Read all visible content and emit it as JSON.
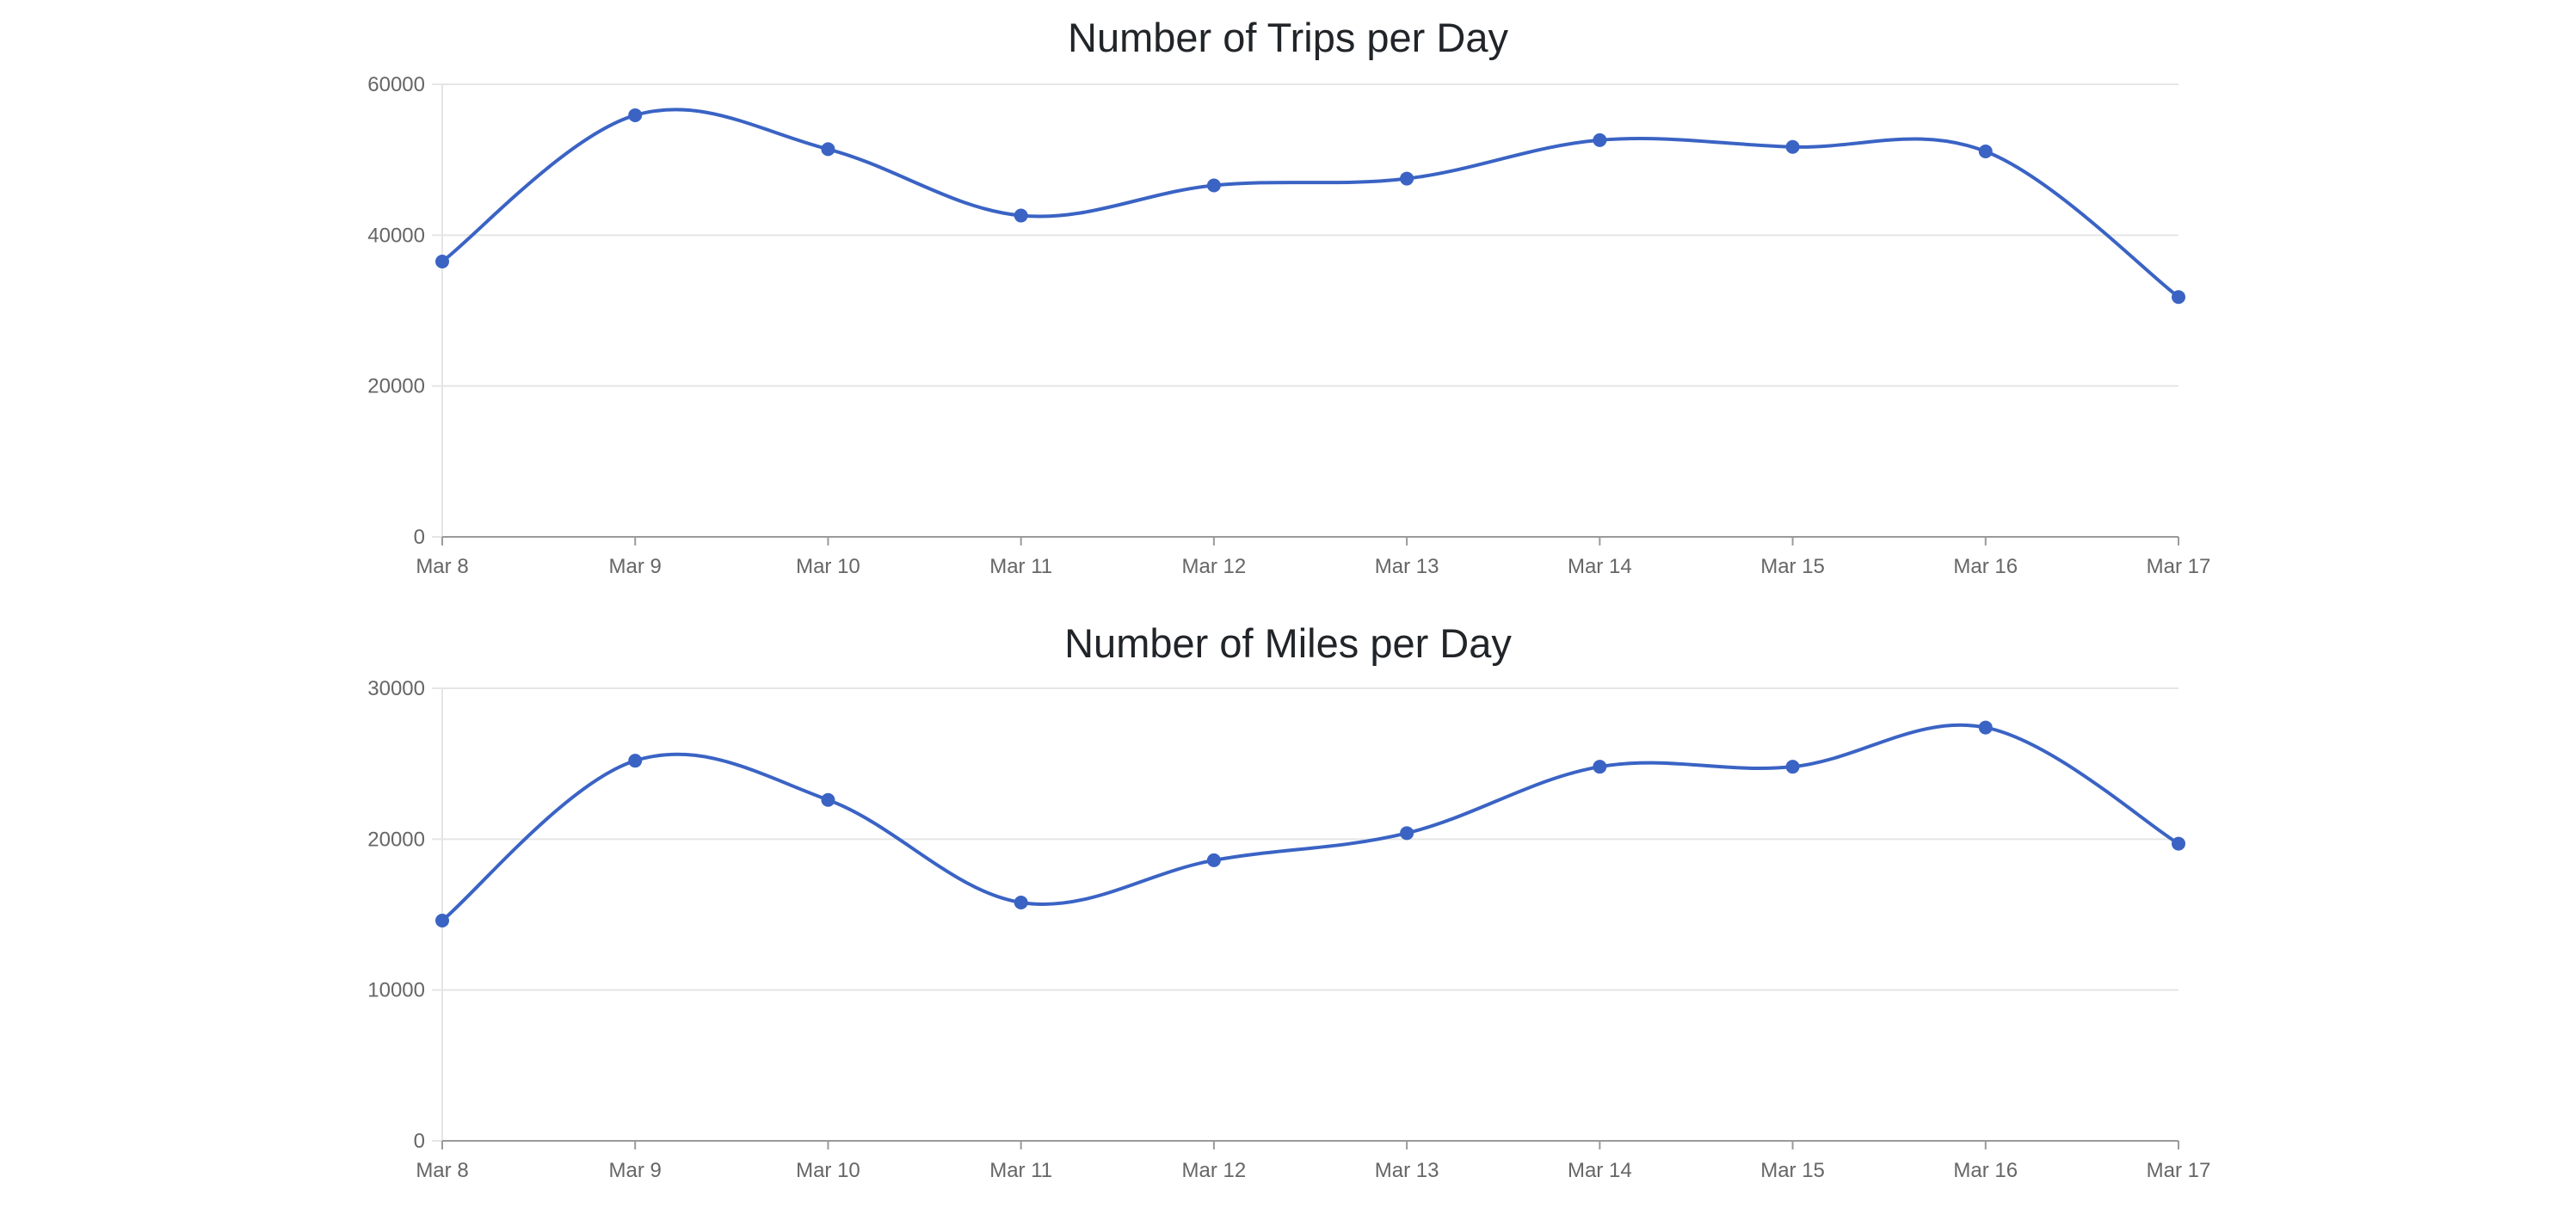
{
  "colors": {
    "series": "#3a63c4",
    "grid": "#e5e5e5",
    "axis": "#9a9a9a",
    "tick_text": "#666666",
    "title_text": "#212529"
  },
  "chart_data": [
    {
      "type": "line",
      "title": "Number of Trips per Day",
      "categories": [
        "Mar 8",
        "Mar 9",
        "Mar 10",
        "Mar 11",
        "Mar 12",
        "Mar 13",
        "Mar 14",
        "Mar 15",
        "Mar 16",
        "Mar 17"
      ],
      "series": [
        {
          "values": [
            36500,
            55900,
            51400,
            42600,
            46600,
            47500,
            52600,
            51700,
            51100,
            31800
          ]
        }
      ],
      "yticks": [
        0,
        20000,
        40000,
        60000
      ],
      "ylim": [
        0,
        60000
      ],
      "grid": true,
      "legend": "none"
    },
    {
      "type": "line",
      "title": "Number of Miles per Day",
      "categories": [
        "Mar 8",
        "Mar 9",
        "Mar 10",
        "Mar 11",
        "Mar 12",
        "Mar 13",
        "Mar 14",
        "Mar 15",
        "Mar 16",
        "Mar 17"
      ],
      "series": [
        {
          "values": [
            14600,
            25200,
            22600,
            15800,
            18600,
            20400,
            24800,
            24800,
            27400,
            19700
          ]
        }
      ],
      "yticks": [
        0,
        10000,
        20000,
        30000
      ],
      "ylim": [
        0,
        30000
      ],
      "grid": true,
      "legend": "none"
    }
  ]
}
